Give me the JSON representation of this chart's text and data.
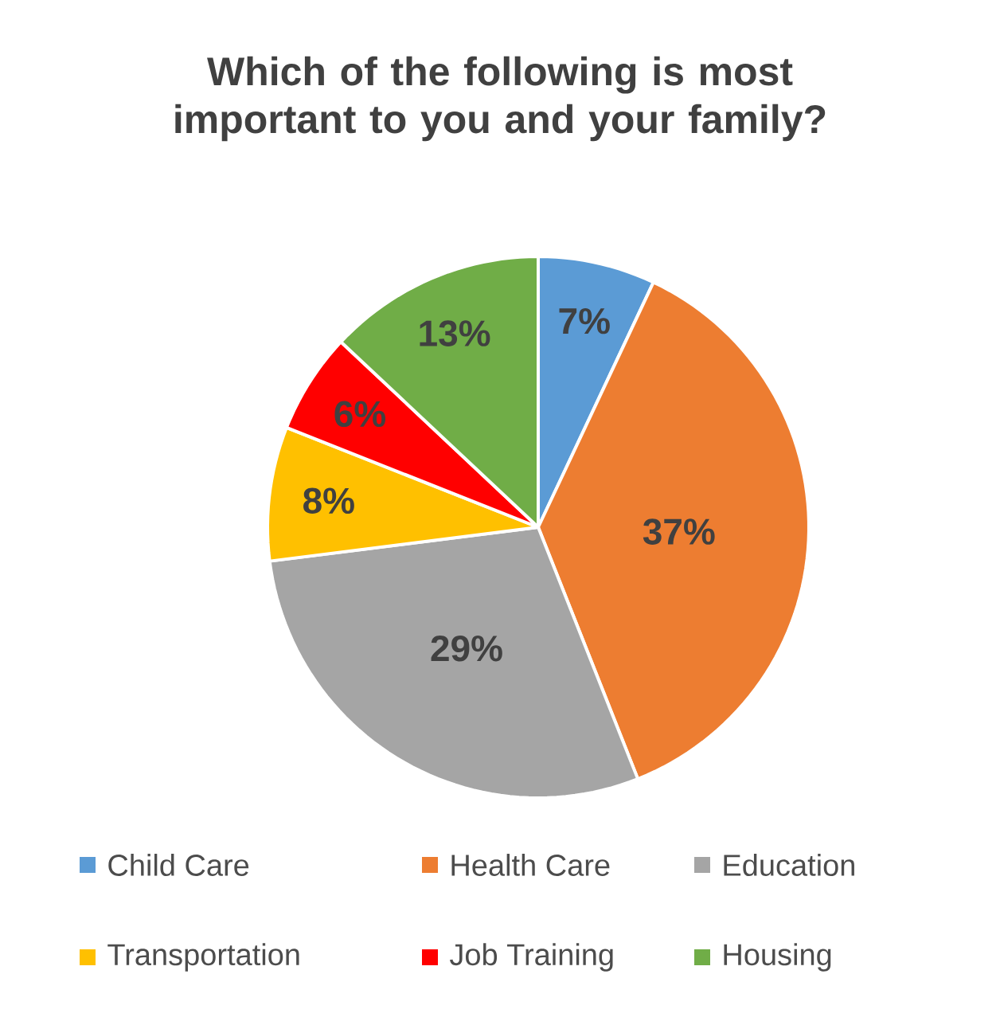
{
  "chart_data": {
    "type": "pie",
    "title": "Which of the following is most important to you and your family?",
    "categories": [
      "Child Care",
      "Health Care",
      "Education",
      "Transportation",
      "Job Training",
      "Housing"
    ],
    "values": [
      7,
      37,
      29,
      8,
      6,
      13
    ],
    "colors": [
      "#5b9bd5",
      "#ed7d31",
      "#a5a5a5",
      "#ffc000",
      "#ff0000",
      "#70ad47"
    ],
    "value_labels": [
      "7%",
      "37%",
      "29%",
      "8%",
      "6%",
      "13%"
    ],
    "legend": "bottom"
  }
}
